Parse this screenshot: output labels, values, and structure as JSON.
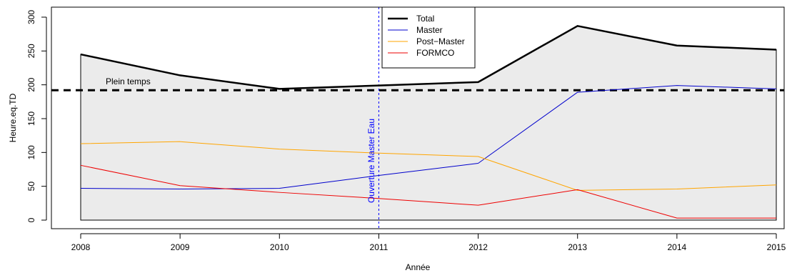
{
  "chart_data": {
    "type": "line",
    "x": [
      2008,
      2009,
      2010,
      2011,
      2012,
      2013,
      2014,
      2015
    ],
    "series": [
      {
        "name": "Total",
        "color": "#000000",
        "width": 2.5,
        "values": [
          245,
          214,
          194,
          199,
          204,
          287,
          258,
          252
        ]
      },
      {
        "name": "Master",
        "color": "#0000cc",
        "width": 1,
        "values": [
          47,
          46,
          47,
          66,
          84,
          189,
          199,
          194
        ]
      },
      {
        "name": "Post−Master",
        "color": "#ffa500",
        "width": 1,
        "values": [
          113,
          116,
          105,
          99,
          94,
          44,
          46,
          52
        ]
      },
      {
        "name": "FORMCO",
        "color": "#ee0000",
        "width": 1,
        "values": [
          81,
          51,
          41,
          32,
          22,
          45,
          3,
          3
        ]
      }
    ],
    "xlabel": "Année",
    "ylabel": "Heure.eq.TD",
    "xticks": [
      "2008",
      "2009",
      "2010",
      "2011",
      "2012",
      "2013",
      "2014",
      "2015"
    ],
    "yticks": [
      "0",
      "50",
      "100",
      "150",
      "200",
      "250",
      "300"
    ],
    "xlim": [
      2008,
      2015
    ],
    "ylim": [
      0,
      300
    ],
    "fill_color": "#ebebeb",
    "hline": {
      "value": 192,
      "label": "Plein temps"
    },
    "vline": {
      "value": 2011,
      "label": "Ouverture Master Eau",
      "color": "#0000ff"
    },
    "legend_position": "top-center"
  }
}
